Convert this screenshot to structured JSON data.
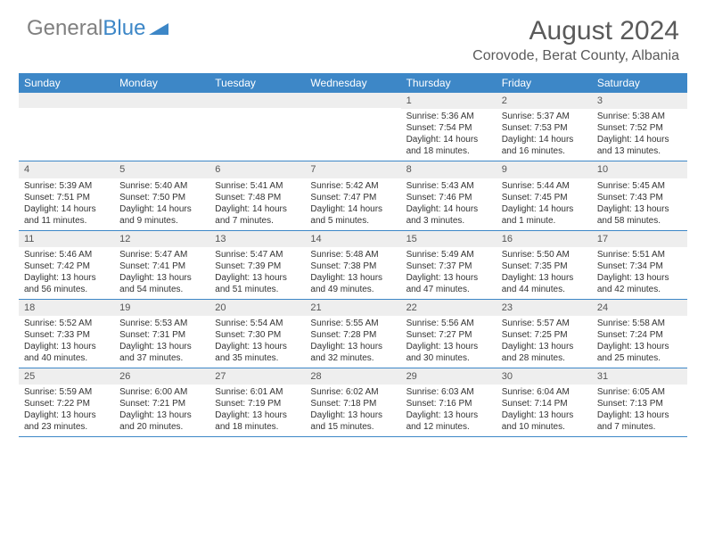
{
  "logo": {
    "text1": "General",
    "text2": "Blue"
  },
  "title": "August 2024",
  "location": "Corovode, Berat County, Albania",
  "colors": {
    "header_bg": "#3d87c7",
    "header_text": "#ffffff",
    "daynum_bg": "#eeeeee",
    "rule": "#3d87c7",
    "logo_gray": "#808080",
    "logo_blue": "#3d87c7"
  },
  "day_labels": [
    "Sunday",
    "Monday",
    "Tuesday",
    "Wednesday",
    "Thursday",
    "Friday",
    "Saturday"
  ],
  "weeks": [
    [
      {
        "n": "",
        "sr": "",
        "ss": "",
        "dl": ""
      },
      {
        "n": "",
        "sr": "",
        "ss": "",
        "dl": ""
      },
      {
        "n": "",
        "sr": "",
        "ss": "",
        "dl": ""
      },
      {
        "n": "",
        "sr": "",
        "ss": "",
        "dl": ""
      },
      {
        "n": "1",
        "sr": "Sunrise: 5:36 AM",
        "ss": "Sunset: 7:54 PM",
        "dl": "Daylight: 14 hours and 18 minutes."
      },
      {
        "n": "2",
        "sr": "Sunrise: 5:37 AM",
        "ss": "Sunset: 7:53 PM",
        "dl": "Daylight: 14 hours and 16 minutes."
      },
      {
        "n": "3",
        "sr": "Sunrise: 5:38 AM",
        "ss": "Sunset: 7:52 PM",
        "dl": "Daylight: 14 hours and 13 minutes."
      }
    ],
    [
      {
        "n": "4",
        "sr": "Sunrise: 5:39 AM",
        "ss": "Sunset: 7:51 PM",
        "dl": "Daylight: 14 hours and 11 minutes."
      },
      {
        "n": "5",
        "sr": "Sunrise: 5:40 AM",
        "ss": "Sunset: 7:50 PM",
        "dl": "Daylight: 14 hours and 9 minutes."
      },
      {
        "n": "6",
        "sr": "Sunrise: 5:41 AM",
        "ss": "Sunset: 7:48 PM",
        "dl": "Daylight: 14 hours and 7 minutes."
      },
      {
        "n": "7",
        "sr": "Sunrise: 5:42 AM",
        "ss": "Sunset: 7:47 PM",
        "dl": "Daylight: 14 hours and 5 minutes."
      },
      {
        "n": "8",
        "sr": "Sunrise: 5:43 AM",
        "ss": "Sunset: 7:46 PM",
        "dl": "Daylight: 14 hours and 3 minutes."
      },
      {
        "n": "9",
        "sr": "Sunrise: 5:44 AM",
        "ss": "Sunset: 7:45 PM",
        "dl": "Daylight: 14 hours and 1 minute."
      },
      {
        "n": "10",
        "sr": "Sunrise: 5:45 AM",
        "ss": "Sunset: 7:43 PM",
        "dl": "Daylight: 13 hours and 58 minutes."
      }
    ],
    [
      {
        "n": "11",
        "sr": "Sunrise: 5:46 AM",
        "ss": "Sunset: 7:42 PM",
        "dl": "Daylight: 13 hours and 56 minutes."
      },
      {
        "n": "12",
        "sr": "Sunrise: 5:47 AM",
        "ss": "Sunset: 7:41 PM",
        "dl": "Daylight: 13 hours and 54 minutes."
      },
      {
        "n": "13",
        "sr": "Sunrise: 5:47 AM",
        "ss": "Sunset: 7:39 PM",
        "dl": "Daylight: 13 hours and 51 minutes."
      },
      {
        "n": "14",
        "sr": "Sunrise: 5:48 AM",
        "ss": "Sunset: 7:38 PM",
        "dl": "Daylight: 13 hours and 49 minutes."
      },
      {
        "n": "15",
        "sr": "Sunrise: 5:49 AM",
        "ss": "Sunset: 7:37 PM",
        "dl": "Daylight: 13 hours and 47 minutes."
      },
      {
        "n": "16",
        "sr": "Sunrise: 5:50 AM",
        "ss": "Sunset: 7:35 PM",
        "dl": "Daylight: 13 hours and 44 minutes."
      },
      {
        "n": "17",
        "sr": "Sunrise: 5:51 AM",
        "ss": "Sunset: 7:34 PM",
        "dl": "Daylight: 13 hours and 42 minutes."
      }
    ],
    [
      {
        "n": "18",
        "sr": "Sunrise: 5:52 AM",
        "ss": "Sunset: 7:33 PM",
        "dl": "Daylight: 13 hours and 40 minutes."
      },
      {
        "n": "19",
        "sr": "Sunrise: 5:53 AM",
        "ss": "Sunset: 7:31 PM",
        "dl": "Daylight: 13 hours and 37 minutes."
      },
      {
        "n": "20",
        "sr": "Sunrise: 5:54 AM",
        "ss": "Sunset: 7:30 PM",
        "dl": "Daylight: 13 hours and 35 minutes."
      },
      {
        "n": "21",
        "sr": "Sunrise: 5:55 AM",
        "ss": "Sunset: 7:28 PM",
        "dl": "Daylight: 13 hours and 32 minutes."
      },
      {
        "n": "22",
        "sr": "Sunrise: 5:56 AM",
        "ss": "Sunset: 7:27 PM",
        "dl": "Daylight: 13 hours and 30 minutes."
      },
      {
        "n": "23",
        "sr": "Sunrise: 5:57 AM",
        "ss": "Sunset: 7:25 PM",
        "dl": "Daylight: 13 hours and 28 minutes."
      },
      {
        "n": "24",
        "sr": "Sunrise: 5:58 AM",
        "ss": "Sunset: 7:24 PM",
        "dl": "Daylight: 13 hours and 25 minutes."
      }
    ],
    [
      {
        "n": "25",
        "sr": "Sunrise: 5:59 AM",
        "ss": "Sunset: 7:22 PM",
        "dl": "Daylight: 13 hours and 23 minutes."
      },
      {
        "n": "26",
        "sr": "Sunrise: 6:00 AM",
        "ss": "Sunset: 7:21 PM",
        "dl": "Daylight: 13 hours and 20 minutes."
      },
      {
        "n": "27",
        "sr": "Sunrise: 6:01 AM",
        "ss": "Sunset: 7:19 PM",
        "dl": "Daylight: 13 hours and 18 minutes."
      },
      {
        "n": "28",
        "sr": "Sunrise: 6:02 AM",
        "ss": "Sunset: 7:18 PM",
        "dl": "Daylight: 13 hours and 15 minutes."
      },
      {
        "n": "29",
        "sr": "Sunrise: 6:03 AM",
        "ss": "Sunset: 7:16 PM",
        "dl": "Daylight: 13 hours and 12 minutes."
      },
      {
        "n": "30",
        "sr": "Sunrise: 6:04 AM",
        "ss": "Sunset: 7:14 PM",
        "dl": "Daylight: 13 hours and 10 minutes."
      },
      {
        "n": "31",
        "sr": "Sunrise: 6:05 AM",
        "ss": "Sunset: 7:13 PM",
        "dl": "Daylight: 13 hours and 7 minutes."
      }
    ]
  ]
}
